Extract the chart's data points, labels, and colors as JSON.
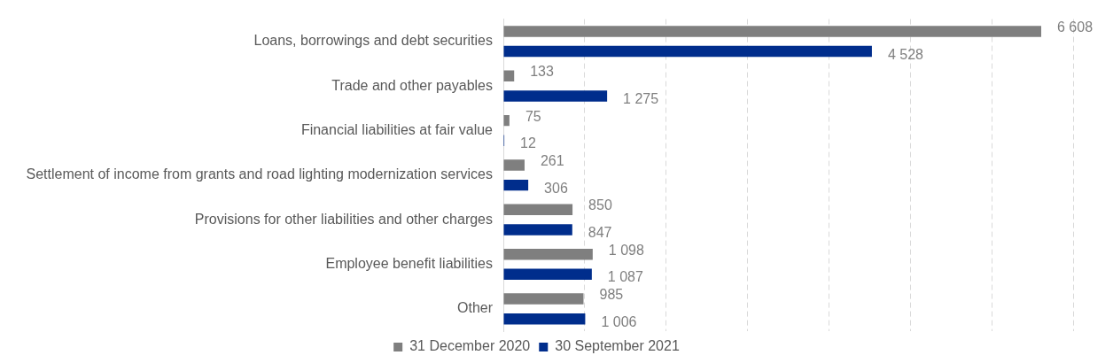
{
  "chart_data": {
    "type": "bar",
    "orientation": "horizontal",
    "categories": [
      "Loans, borrowings and debt securities",
      "Trade and other payables",
      "Financial liabilities at fair value",
      "Settlement of income from grants and road lighting modernization services",
      "Provisions for other liabilities and other charges",
      "Employee benefit liabilities",
      "Other"
    ],
    "series": [
      {
        "name": "31 December 2020",
        "color": "#7f7f7f",
        "values": [
          6608,
          133,
          75,
          261,
          850,
          1098,
          985
        ],
        "value_labels": [
          "6 608",
          "133",
          "75",
          "261",
          "850",
          "1 098",
          "985"
        ]
      },
      {
        "name": "30 September 2021",
        "color": "#002d8c",
        "values": [
          4528,
          1275,
          12,
          306,
          847,
          1087,
          1006
        ],
        "value_labels": [
          "4 528",
          "1 275",
          "12",
          "306",
          "847",
          "1 087",
          "1 006"
        ]
      }
    ],
    "xlim": [
      0,
      7000
    ],
    "xticks": [
      {
        "value": 0,
        "label": null
      },
      {
        "value": 1000,
        "label": null
      },
      {
        "value": 2000,
        "label": null
      },
      {
        "value": 3000,
        "label": null
      },
      {
        "value": 4000,
        "label": null
      },
      {
        "value": 5000,
        "label": null
      },
      {
        "value": 6000,
        "label": null
      },
      {
        "value": 7000,
        "label": null
      }
    ],
    "tick_labels": "y",
    "grid": "x",
    "legend": "bottom"
  }
}
